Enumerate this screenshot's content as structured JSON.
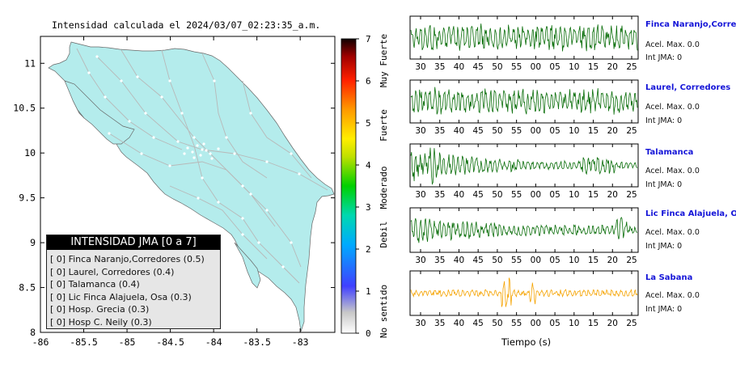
{
  "map": {
    "title": "Intensidad calculada el 2024/03/07_02:23:35_a.m.",
    "x_ticks": [
      "-86",
      "-85.5",
      "-85",
      "-84.5",
      "-84",
      "-83.5",
      "-83"
    ],
    "y_ticks": [
      "11",
      "10.5",
      "10",
      "9.5",
      "9",
      "8.5",
      "8"
    ],
    "xlim": [
      -86,
      -82.6
    ],
    "ylim": [
      8,
      11.3
    ],
    "land_color": "#b4ecec",
    "road_color": "#b8b8b8"
  },
  "colorbar": {
    "ticks": [
      "0",
      "1",
      "2",
      "3",
      "4",
      "5",
      "6",
      "7"
    ],
    "labels": [
      "No sentido",
      "Debil",
      "Moderado",
      "Fuerte",
      "Muy Fuerte"
    ],
    "range": [
      0,
      7
    ]
  },
  "legend": {
    "title": "INTENSIDAD JMA [0 a 7]",
    "rows": [
      "[ 0] Finca Naranjo,Corredores (0.5)",
      "[ 0] Laurel, Corredores (0.4)",
      "[ 0] Talamanca (0.4)",
      "[ 0] Lic Finca Alajuela, Osa (0.3)",
      "[ 0] Hosp. Grecia (0.3)",
      "[ 0] Hosp C. Neily (0.3)"
    ]
  },
  "waveforms": {
    "x_ticks": [
      "30",
      "35",
      "40",
      "45",
      "50",
      "55",
      "00",
      "05",
      "10",
      "15",
      "20",
      "25"
    ],
    "xlabel": "Tiempo (s)",
    "stations": [
      {
        "name": "Finca Naranjo,Corredor",
        "acel": "Acel. Max. 0.0",
        "int": "Int JMA: 0",
        "color": "#0a6e0a"
      },
      {
        "name": "Laurel, Corredores",
        "acel": "Acel. Max. 0.0",
        "int": "Int JMA: 0",
        "color": "#0a6e0a"
      },
      {
        "name": "Talamanca",
        "acel": "Acel. Max. 0.0",
        "int": "Int JMA: 0",
        "color": "#0a6e0a"
      },
      {
        "name": "Lic Finca Alajuela, Osa",
        "acel": "Acel. Max. 0.0",
        "int": "Int JMA: 0",
        "color": "#0a6e0a"
      },
      {
        "name": "La Sabana",
        "acel": "Acel. Max. 0.0",
        "int": "Int JMA: 0",
        "color": "#f5a300"
      }
    ]
  }
}
